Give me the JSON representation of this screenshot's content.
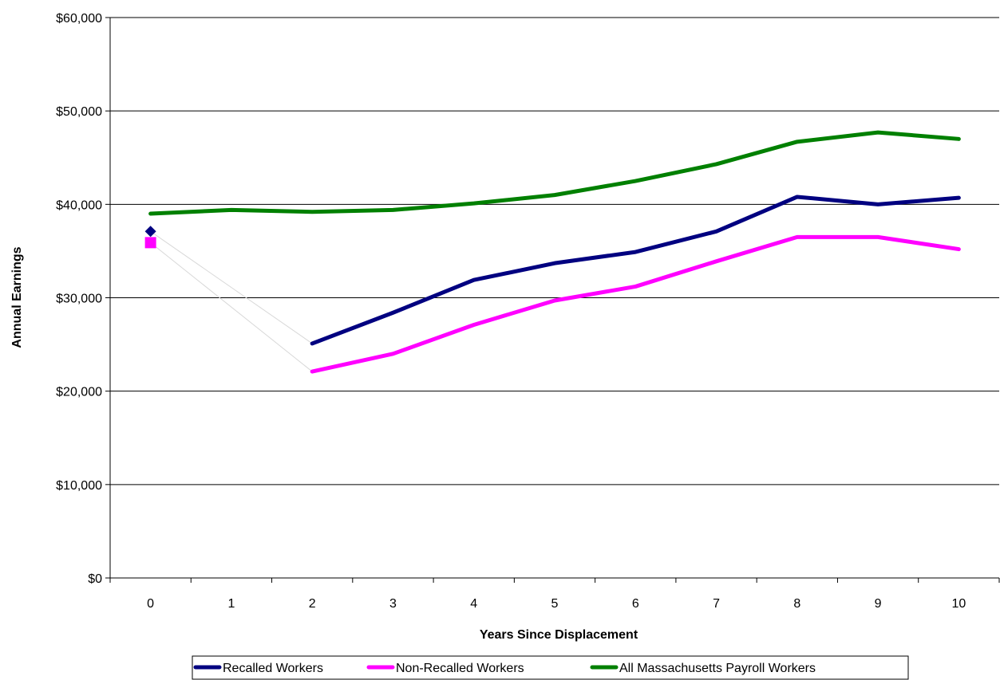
{
  "chart_data": {
    "type": "line",
    "title": "",
    "xlabel": "Years Since Displacement",
    "ylabel": "Annual Earnings",
    "x": [
      0,
      1,
      2,
      3,
      4,
      5,
      6,
      7,
      8,
      9,
      10
    ],
    "x_tick_labels": [
      "0",
      "1",
      "2",
      "3",
      "4",
      "5",
      "6",
      "7",
      "8",
      "9",
      "10"
    ],
    "y_tick_labels": [
      "$0",
      "$10,000",
      "$20,000",
      "$30,000",
      "$40,000",
      "$50,000",
      "$60,000"
    ],
    "ylim": [
      0,
      60000
    ],
    "y_tick_step": 10000,
    "grid": "horizontal",
    "legend_position": "bottom",
    "series": [
      {
        "name": "Recalled Workers",
        "color": "#000080",
        "marker": "diamond",
        "values": [
          37100,
          null,
          25100,
          28400,
          31900,
          33700,
          34900,
          37100,
          40800,
          40000,
          40700
        ]
      },
      {
        "name": "Non-Recalled Workers",
        "color": "#FF00FF",
        "marker": "square",
        "values": [
          35900,
          null,
          22100,
          24000,
          27100,
          29700,
          31200,
          33900,
          36500,
          36500,
          35200
        ]
      },
      {
        "name": "All Massachusetts Payroll Workers",
        "color": "#008000",
        "marker": "none",
        "values": [
          39000,
          39400,
          39200,
          39400,
          40100,
          41000,
          42500,
          44300,
          46700,
          47700,
          47000
        ]
      }
    ]
  }
}
